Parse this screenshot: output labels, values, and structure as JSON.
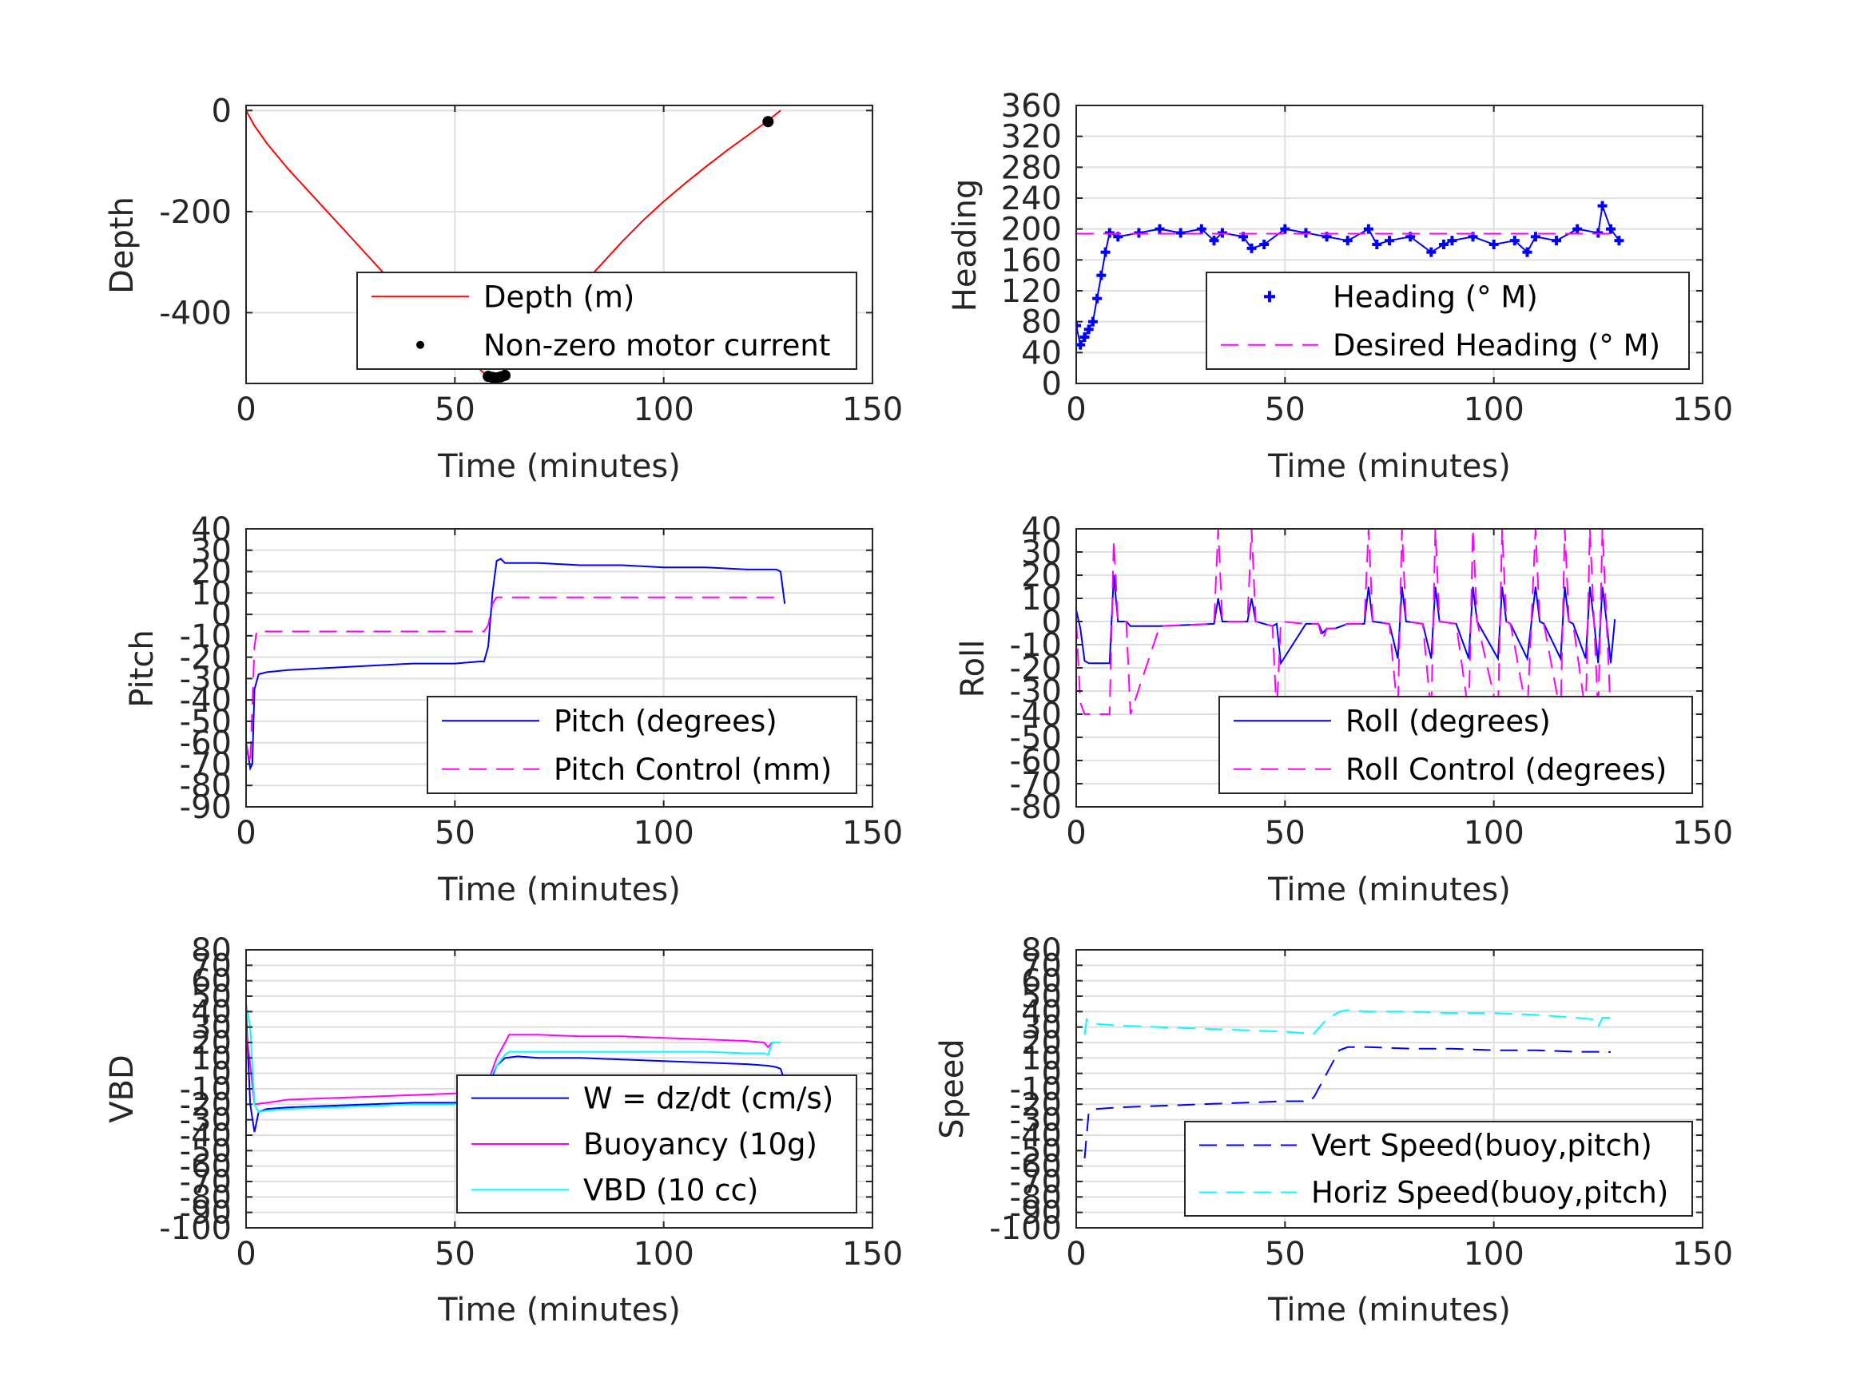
{
  "chart_data": [
    {
      "id": "depth",
      "type": "line",
      "xlabel": "Time (minutes)",
      "ylabel": "Depth",
      "xlim": [
        0,
        150
      ],
      "ylim": [
        -540,
        10
      ],
      "xticks": [
        0,
        50,
        100,
        150
      ],
      "yticks": [
        0,
        -200,
        -400
      ],
      "grid": true,
      "legend_position": "bottom-right",
      "series": [
        {
          "name": "Depth (m)",
          "color": "#ff0000",
          "style": "solid",
          "x": [
            0,
            2,
            5,
            10,
            15,
            20,
            25,
            30,
            35,
            40,
            45,
            50,
            55,
            57,
            59,
            61,
            63,
            65,
            70,
            75,
            80,
            85,
            90,
            95,
            100,
            105,
            110,
            115,
            120,
            125,
            128
          ],
          "y": [
            0,
            -30,
            -65,
            -115,
            -160,
            -205,
            -250,
            -295,
            -340,
            -382,
            -425,
            -465,
            -505,
            -520,
            -528,
            -525,
            -505,
            -485,
            -440,
            -395,
            -350,
            -305,
            -260,
            -218,
            -180,
            -145,
            -112,
            -80,
            -50,
            -20,
            0
          ]
        },
        {
          "name": "Non-zero motor current",
          "color": "#000000",
          "style": "marker",
          "x": [
            58,
            59,
            60,
            61,
            62,
            125
          ],
          "y": [
            -526,
            -528,
            -529,
            -527,
            -524,
            -22
          ]
        }
      ]
    },
    {
      "id": "heading",
      "type": "scatter",
      "xlabel": "Time (minutes)",
      "ylabel": "Heading",
      "xlim": [
        0,
        150
      ],
      "ylim": [
        0,
        360
      ],
      "xticks": [
        0,
        50,
        100,
        150
      ],
      "yticks": [
        0,
        40,
        80,
        120,
        160,
        200,
        240,
        280,
        320,
        360
      ],
      "grid": true,
      "legend_position": "bottom-right",
      "series": [
        {
          "name": "Heading (° M)",
          "color": "#0000ff",
          "style": "plus",
          "x": [
            0,
            1,
            2,
            3,
            4,
            5,
            6,
            7,
            8,
            10,
            15,
            20,
            25,
            30,
            33,
            35,
            40,
            42,
            45,
            50,
            55,
            60,
            65,
            70,
            72,
            75,
            80,
            85,
            88,
            90,
            95,
            100,
            105,
            108,
            110,
            115,
            120,
            125,
            126,
            128,
            130
          ],
          "y": [
            75,
            50,
            60,
            70,
            80,
            110,
            140,
            170,
            195,
            190,
            195,
            200,
            195,
            200,
            185,
            195,
            190,
            175,
            180,
            200,
            195,
            190,
            185,
            200,
            180,
            185,
            190,
            170,
            180,
            185,
            190,
            180,
            185,
            170,
            190,
            185,
            200,
            195,
            230,
            200,
            185
          ]
        },
        {
          "name": "Desired Heading (° M)",
          "color": "#ff00ff",
          "style": "dashed",
          "x": [
            0,
            130
          ],
          "y": [
            194,
            194
          ]
        }
      ]
    },
    {
      "id": "pitch",
      "type": "line",
      "xlabel": "Time (minutes)",
      "ylabel": "Pitch",
      "xlim": [
        0,
        150
      ],
      "ylim": [
        -90,
        40
      ],
      "xticks": [
        0,
        50,
        100,
        150
      ],
      "yticks": [
        -90,
        -80,
        -70,
        -60,
        -50,
        -40,
        -30,
        -20,
        -10,
        0,
        10,
        20,
        30,
        40
      ],
      "grid": true,
      "legend_position": "bottom-right",
      "series": [
        {
          "name": "Pitch (degrees)",
          "color": "#0000ff",
          "style": "solid",
          "x": [
            0,
            1,
            1.5,
            2,
            3,
            5,
            10,
            20,
            30,
            40,
            50,
            56,
            57,
            58,
            59,
            60,
            61,
            62,
            65,
            70,
            80,
            90,
            100,
            110,
            120,
            127,
            128,
            129
          ],
          "y": [
            -60,
            -72,
            -70,
            -35,
            -28,
            -27,
            -26,
            -25,
            -24,
            -23,
            -23,
            -22,
            -22,
            -15,
            10,
            25,
            26,
            24,
            24,
            24,
            23,
            23,
            22,
            22,
            21,
            21,
            20,
            5
          ]
        },
        {
          "name": "Pitch Control (mm)",
          "color": "#ff00ff",
          "style": "dashed",
          "x": [
            0,
            1,
            2,
            2.5,
            10,
            30,
            56,
            57,
            58,
            59,
            60,
            70,
            90,
            110,
            128
          ],
          "y": [
            -60,
            -70,
            -15,
            -8,
            -8,
            -8,
            -8,
            -8,
            -5,
            5,
            8,
            8,
            8,
            8,
            8
          ]
        }
      ]
    },
    {
      "id": "roll",
      "type": "line",
      "xlabel": "Time (minutes)",
      "ylabel": "Roll",
      "xlim": [
        0,
        150
      ],
      "ylim": [
        -80,
        40
      ],
      "xticks": [
        0,
        50,
        100,
        150
      ],
      "yticks": [
        -80,
        -70,
        -60,
        -50,
        -40,
        -30,
        -20,
        -10,
        0,
        10,
        20,
        30,
        40
      ],
      "grid": true,
      "legend_position": "bottom-right",
      "series": [
        {
          "name": "Roll (degrees)",
          "color": "#0000ff",
          "style": "solid",
          "x": [
            0,
            1,
            2,
            3,
            8,
            9,
            10,
            12,
            13,
            20,
            33,
            34,
            35,
            41,
            42,
            43,
            47,
            48,
            49,
            55,
            58,
            59,
            60,
            62,
            65,
            69,
            70,
            71,
            75,
            77,
            78,
            79,
            83,
            85,
            86,
            87,
            91,
            94,
            95,
            96,
            101,
            102,
            103,
            104,
            108,
            110,
            111,
            112,
            116,
            117,
            118,
            119,
            122,
            123,
            124,
            125,
            126,
            127,
            128,
            129
          ],
          "y": [
            5,
            -3,
            -17,
            -18,
            -18,
            20,
            0,
            0,
            -2,
            -2,
            -1,
            10,
            0,
            0,
            10,
            0,
            -2,
            -1,
            -18,
            -1,
            -1,
            -5,
            -3,
            -3,
            -1,
            -1,
            15,
            0,
            -1,
            -16,
            15,
            0,
            -1,
            -16,
            15,
            0,
            -1,
            -16,
            15,
            0,
            -16,
            15,
            0,
            -1,
            -16,
            15,
            0,
            -1,
            -16,
            15,
            0,
            -1,
            -16,
            15,
            0,
            -18,
            15,
            0,
            -18,
            1
          ]
        },
        {
          "name": "Roll Control (degrees)",
          "color": "#ff00ff",
          "style": "dashed",
          "x": [
            0,
            1,
            2,
            8,
            9,
            10,
            12,
            13,
            20,
            33,
            34,
            35,
            41,
            42,
            43,
            47,
            48,
            49,
            55,
            58,
            59,
            60,
            62,
            65,
            69,
            70,
            71,
            75,
            77,
            78,
            79,
            83,
            85,
            86,
            87,
            91,
            94,
            95,
            96,
            101,
            102,
            103,
            104,
            108,
            110,
            111,
            112,
            116,
            117,
            118,
            119,
            122,
            123,
            124,
            125,
            126,
            127,
            128
          ],
          "y": [
            0,
            -35,
            -40,
            -40,
            35,
            0,
            0,
            -40,
            -2,
            -1,
            40,
            0,
            0,
            40,
            0,
            -2,
            -40,
            0,
            -1,
            -1,
            -8,
            -3,
            -3,
            -1,
            -1,
            40,
            0,
            -1,
            -40,
            40,
            0,
            -1,
            -40,
            40,
            0,
            -1,
            -40,
            40,
            0,
            -40,
            40,
            0,
            -1,
            -40,
            40,
            0,
            -1,
            -40,
            40,
            0,
            -1,
            -40,
            40,
            0,
            -40,
            40,
            0,
            -40
          ]
        }
      ]
    },
    {
      "id": "vbd",
      "type": "line",
      "xlabel": "Time (minutes)",
      "ylabel": "VBD",
      "xlim": [
        0,
        150
      ],
      "ylim": [
        -100,
        80
      ],
      "xticks": [
        0,
        50,
        100,
        150
      ],
      "yticks": [
        -100,
        -90,
        -80,
        -70,
        -60,
        -50,
        -40,
        -30,
        -20,
        -10,
        0,
        10,
        20,
        30,
        40,
        50,
        60,
        70,
        80
      ],
      "grid": true,
      "legend_position": "bottom-right",
      "series": [
        {
          "name": "W = dz/dt (cm/s)",
          "color": "#0000ff",
          "style": "solid",
          "x": [
            0,
            1,
            2,
            3,
            5,
            10,
            20,
            30,
            40,
            50,
            56,
            57,
            58,
            60,
            62,
            65,
            70,
            80,
            90,
            100,
            110,
            120,
            125,
            127,
            128,
            129
          ],
          "y": [
            40,
            -20,
            -38,
            -25,
            -23,
            -22,
            -21,
            -20,
            -19,
            -19,
            -18,
            -15,
            -8,
            5,
            10,
            11,
            10,
            10,
            9,
            8,
            7,
            6,
            5,
            4,
            3,
            -5
          ]
        },
        {
          "name": "Buoyancy (10g)",
          "color": "#ff00ff",
          "style": "solid",
          "x": [
            0,
            2,
            5,
            10,
            20,
            30,
            40,
            50,
            56,
            57,
            58,
            60,
            62,
            63,
            70,
            80,
            90,
            100,
            110,
            120,
            124,
            125,
            126,
            128
          ],
          "y": [
            30,
            -20,
            -19,
            -17,
            -16,
            -15,
            -14,
            -13,
            -13,
            -10,
            -5,
            10,
            20,
            25,
            25,
            24,
            24,
            23,
            22,
            21,
            20,
            17,
            20,
            20
          ]
        },
        {
          "name": "VBD (10 cc)",
          "color": "#00ffff",
          "style": "solid",
          "x": [
            0,
            1,
            2,
            3,
            5,
            10,
            20,
            30,
            40,
            50,
            56,
            57,
            58,
            60,
            62,
            63,
            70,
            80,
            90,
            100,
            110,
            120,
            124,
            125,
            126,
            128
          ],
          "y": [
            45,
            30,
            -20,
            -25,
            -24,
            -23,
            -22,
            -21,
            -20,
            -20,
            -20,
            -15,
            -5,
            5,
            12,
            14,
            14,
            14,
            14,
            14,
            14,
            13,
            13,
            12,
            20,
            20
          ]
        }
      ]
    },
    {
      "id": "speed",
      "type": "line",
      "xlabel": "Time (minutes)",
      "ylabel": "Speed",
      "xlim": [
        0,
        150
      ],
      "ylim": [
        -100,
        80
      ],
      "xticks": [
        0,
        50,
        100,
        150
      ],
      "yticks": [
        -100,
        -90,
        -80,
        -70,
        -60,
        -50,
        -40,
        -30,
        -20,
        -10,
        0,
        10,
        20,
        30,
        40,
        50,
        60,
        70,
        80
      ],
      "grid": true,
      "legend_position": "bottom-right",
      "series": [
        {
          "name": "Vert Speed(buoy,pitch)",
          "color": "#0000ff",
          "style": "dashed",
          "x": [
            2,
            2.5,
            3,
            5,
            10,
            20,
            30,
            40,
            50,
            56,
            57,
            60,
            63,
            65,
            70,
            80,
            90,
            100,
            110,
            120,
            125,
            126,
            128
          ],
          "y": [
            -55,
            -40,
            -25,
            -23,
            -22,
            -21,
            -20,
            -19,
            -18,
            -18,
            -15,
            0,
            15,
            17,
            17,
            16,
            16,
            15,
            15,
            14,
            14,
            13,
            14
          ]
        },
        {
          "name": "Horiz Speed(buoy,pitch)",
          "color": "#00ffff",
          "style": "dashed",
          "x": [
            2,
            2.5,
            3,
            5,
            10,
            20,
            30,
            40,
            50,
            55,
            56,
            57,
            60,
            63,
            65,
            70,
            80,
            90,
            100,
            110,
            120,
            124,
            125,
            126,
            128
          ],
          "y": [
            25,
            35,
            33,
            32,
            31,
            30,
            29,
            28,
            27,
            26,
            25,
            26,
            35,
            40,
            41,
            40,
            40,
            39,
            39,
            38,
            36,
            35,
            30,
            36,
            36
          ]
        }
      ]
    }
  ]
}
